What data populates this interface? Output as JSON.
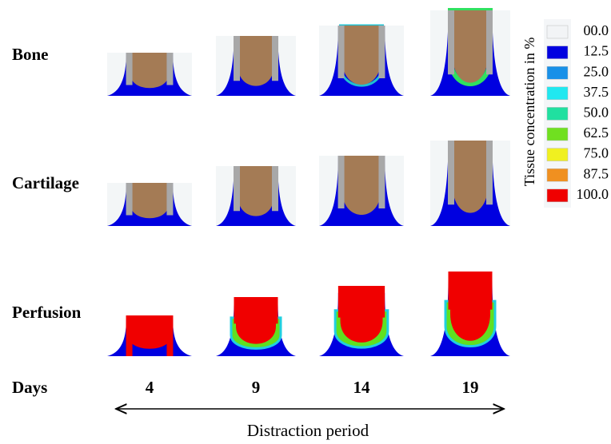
{
  "rows": [
    "Bone",
    "Cartilage",
    "Perfusion"
  ],
  "days": {
    "label": "Days",
    "values": [
      "4",
      "9",
      "14",
      "19"
    ]
  },
  "colorbar": {
    "title": "Tissue concentration in %",
    "labels": [
      "00.0",
      "12.5",
      "25.0",
      "37.5",
      "50.0",
      "62.5",
      "75.0",
      "87.5",
      "100.0"
    ]
  },
  "axis_label": "Distraction period"
}
